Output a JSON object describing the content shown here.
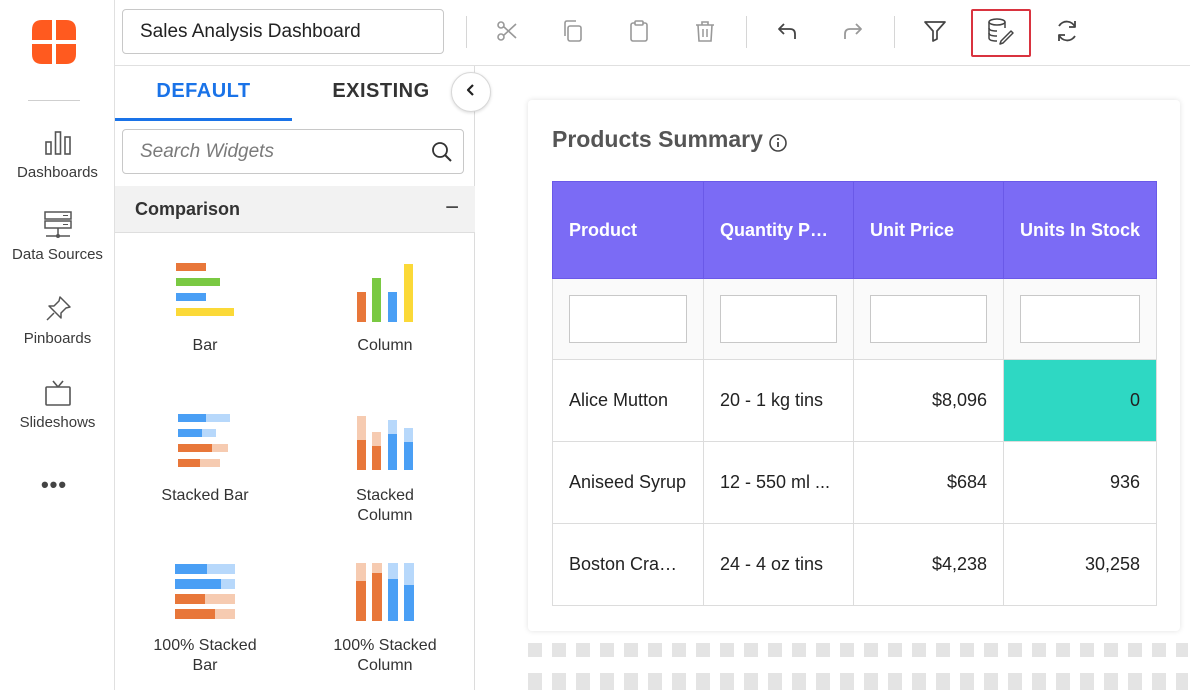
{
  "nav": {
    "items": [
      {
        "label": "Dashboards",
        "icon": "bar-chart-icon"
      },
      {
        "label": "Data Sources",
        "icon": "server-icon"
      },
      {
        "label": "Pinboards",
        "icon": "pin-icon"
      },
      {
        "label": "Slideshows",
        "icon": "tv-icon"
      }
    ],
    "more": "•••"
  },
  "toolbar": {
    "title": "Sales Analysis Dashboard",
    "buttons": [
      "cut-icon",
      "copy-icon",
      "paste-icon",
      "delete-icon",
      "undo-icon",
      "redo-icon",
      "filter-icon",
      "data-source-icon",
      "refresh-icon"
    ],
    "active_button": "data-source-icon"
  },
  "panel": {
    "tabs": [
      "DEFAULT",
      "EXISTING"
    ],
    "active_tab": "DEFAULT",
    "search_placeholder": "Search Widgets",
    "category": "Comparison",
    "category_toggle": "−",
    "widgets": [
      {
        "label": "Bar"
      },
      {
        "label": "Column"
      },
      {
        "label": "Stacked Bar"
      },
      {
        "label": "Stacked\nColumn"
      },
      {
        "label": "100% Stacked\nBar"
      },
      {
        "label": "100% Stacked\nColumn"
      }
    ]
  },
  "card": {
    "title": "Products Summary",
    "columns": [
      "Product",
      "Quantity Per ...",
      "Unit Price",
      "Units In Stock"
    ],
    "rows": [
      [
        "Alice Mutton",
        "20 - 1 kg tins",
        "$8,096",
        "0"
      ],
      [
        "Aniseed Syrup",
        "12 - 550 ml ...",
        "$684",
        "936"
      ],
      [
        "Boston Crab ...",
        "24 - 4 oz tins",
        "$4,238",
        "30,258"
      ]
    ]
  },
  "colors": {
    "accent": "#1a73e8",
    "header_bg": "#7b6bf5",
    "highlight": "#2ed8c3",
    "logo": "#ff5a1f",
    "active_border": "#d9333f"
  }
}
